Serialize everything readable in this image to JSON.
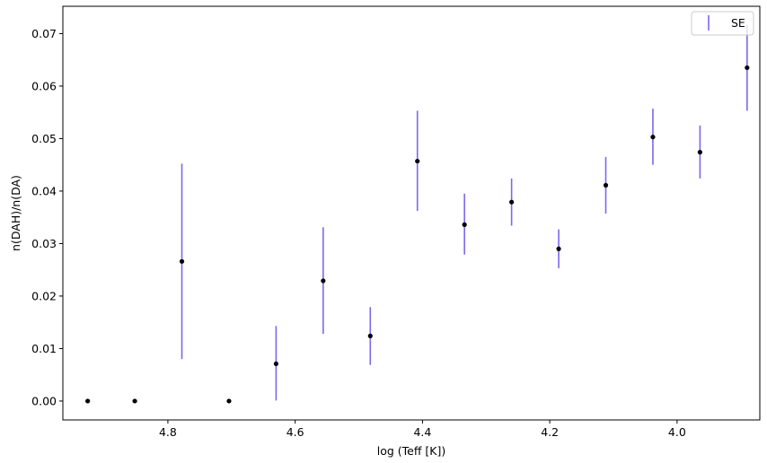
{
  "chart_data": {
    "type": "scatter",
    "xlabel": "log (Teff [K])",
    "ylabel": "n(DAH)/n(DA)",
    "x_inverted": true,
    "xlim": [
      4.965,
      3.87
    ],
    "ylim": [
      -0.0036,
      0.0752
    ],
    "x_ticks": [
      4.8,
      4.6,
      4.4,
      4.2,
      4.0
    ],
    "x_tick_labels": [
      "4.8",
      "4.6",
      "4.4",
      "4.2",
      "4.0"
    ],
    "y_ticks": [
      0.0,
      0.01,
      0.02,
      0.03,
      0.04,
      0.05,
      0.06,
      0.07
    ],
    "y_tick_labels": [
      "0.00",
      "0.01",
      "0.02",
      "0.03",
      "0.04",
      "0.05",
      "0.06",
      "0.07"
    ],
    "legend": {
      "position": "top-right",
      "entries": [
        "SE"
      ]
    },
    "grid": false,
    "error_color": "#7b68ee",
    "point_color": "#000000",
    "x": [
      4.926,
      4.852,
      4.778,
      4.704,
      4.63,
      4.556,
      4.482,
      4.408,
      4.334,
      4.26,
      4.186,
      4.112,
      4.038,
      3.964,
      3.89
    ],
    "y": [
      0.0,
      0.0,
      0.0266,
      0.0,
      0.0071,
      0.0229,
      0.0124,
      0.0457,
      0.0336,
      0.0379,
      0.029,
      0.0411,
      0.0503,
      0.0474,
      0.0635
    ],
    "yerr_low": [
      null,
      null,
      0.008,
      null,
      0.0001,
      0.0128,
      0.0069,
      0.0362,
      0.0279,
      0.0334,
      0.0253,
      0.0357,
      0.045,
      0.0424,
      0.0553
    ],
    "yerr_high": [
      null,
      null,
      0.0452,
      null,
      0.0143,
      0.0331,
      0.0179,
      0.0553,
      0.0395,
      0.0424,
      0.0327,
      0.0465,
      0.0557,
      0.0525,
      0.0717
    ]
  }
}
